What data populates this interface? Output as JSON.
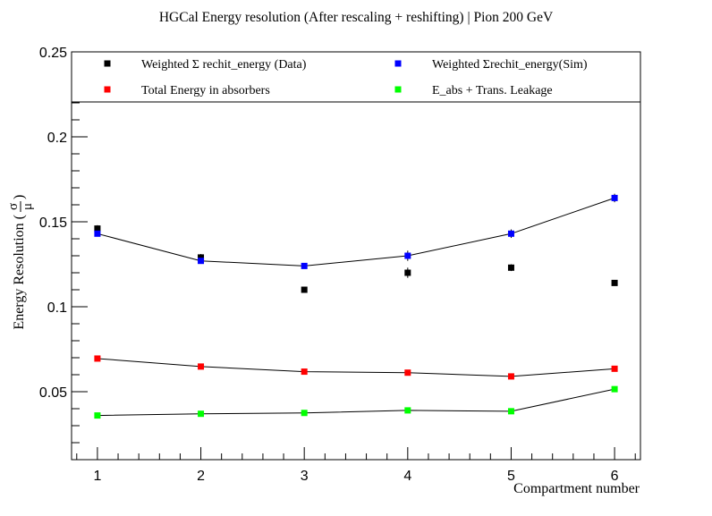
{
  "chart_data": {
    "type": "scatter",
    "title": "HGCal Energy resolution (After rescaling + reshifting) | Pion 200 GeV",
    "xlabel": "Compartment number",
    "ylabel_prefix": "Energy Resolution ( ",
    "ylabel_num": "σ",
    "ylabel_den": "μ",
    "ylabel_suffix": " )",
    "xlim": [
      0.75,
      6.25
    ],
    "ylim": [
      0.01,
      0.25
    ],
    "xticks": [
      1,
      2,
      3,
      4,
      5,
      6
    ],
    "xtick_labels": [
      "1",
      "2",
      "3",
      "4",
      "5",
      "6"
    ],
    "yticks": [
      0.05,
      0.1,
      0.15,
      0.2,
      0.25
    ],
    "ytick_labels": [
      "0.05",
      "0.1",
      "0.15",
      "0.2",
      "0.25"
    ],
    "grid": false,
    "legend_placement": "top, inside frame, two columns",
    "series": [
      {
        "name": "Weighted Σ rechit_energy (Data)",
        "color": "#000000",
        "marker": "square",
        "connected": false,
        "x": [
          1,
          2,
          3,
          4,
          5,
          6
        ],
        "y": [
          0.146,
          0.129,
          0.11,
          0.12,
          0.123,
          0.114
        ],
        "err": [
          0.002,
          0.002,
          0.0015,
          0.003,
          0.002,
          0.0015
        ]
      },
      {
        "name": "Weighted Σrechit_energy(Sim)",
        "color": "#0000ff",
        "marker": "square",
        "connected": true,
        "x": [
          1,
          2,
          3,
          4,
          5,
          6
        ],
        "y": [
          0.143,
          0.127,
          0.124,
          0.13,
          0.143,
          0.164
        ],
        "err": [
          0.001,
          0.001,
          0.0015,
          0.003,
          0.0025,
          0.0025
        ]
      },
      {
        "name": "Total Energy in absorbers",
        "color": "#ff0000",
        "marker": "square",
        "connected": true,
        "x": [
          1,
          2,
          3,
          4,
          5,
          6
        ],
        "y": [
          0.0695,
          0.0648,
          0.0618,
          0.0612,
          0.059,
          0.0635
        ],
        "err": [
          0.0008,
          0.0008,
          0.0008,
          0.0008,
          0.0008,
          0.0008
        ]
      },
      {
        "name": "E_abs + Trans. Leakage",
        "color": "#00ff00",
        "marker": "square",
        "connected": true,
        "x": [
          1,
          2,
          3,
          4,
          5,
          6
        ],
        "y": [
          0.036,
          0.037,
          0.0375,
          0.039,
          0.0385,
          0.0515
        ],
        "err": [
          0.0006,
          0.0006,
          0.0006,
          0.0006,
          0.0006,
          0.0006
        ]
      }
    ]
  }
}
